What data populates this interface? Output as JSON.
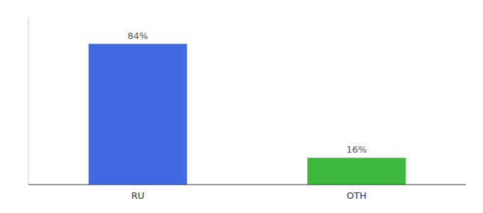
{
  "chart_data": {
    "type": "bar",
    "categories": [
      "RU",
      "OTH"
    ],
    "values": [
      84,
      16
    ],
    "value_labels": [
      "84%",
      "16%"
    ],
    "data_labels": true,
    "colors": [
      "#4169e1",
      "#3cb83c"
    ],
    "ylim": [
      0,
      100
    ],
    "tick_labels": "x",
    "grid": false
  }
}
